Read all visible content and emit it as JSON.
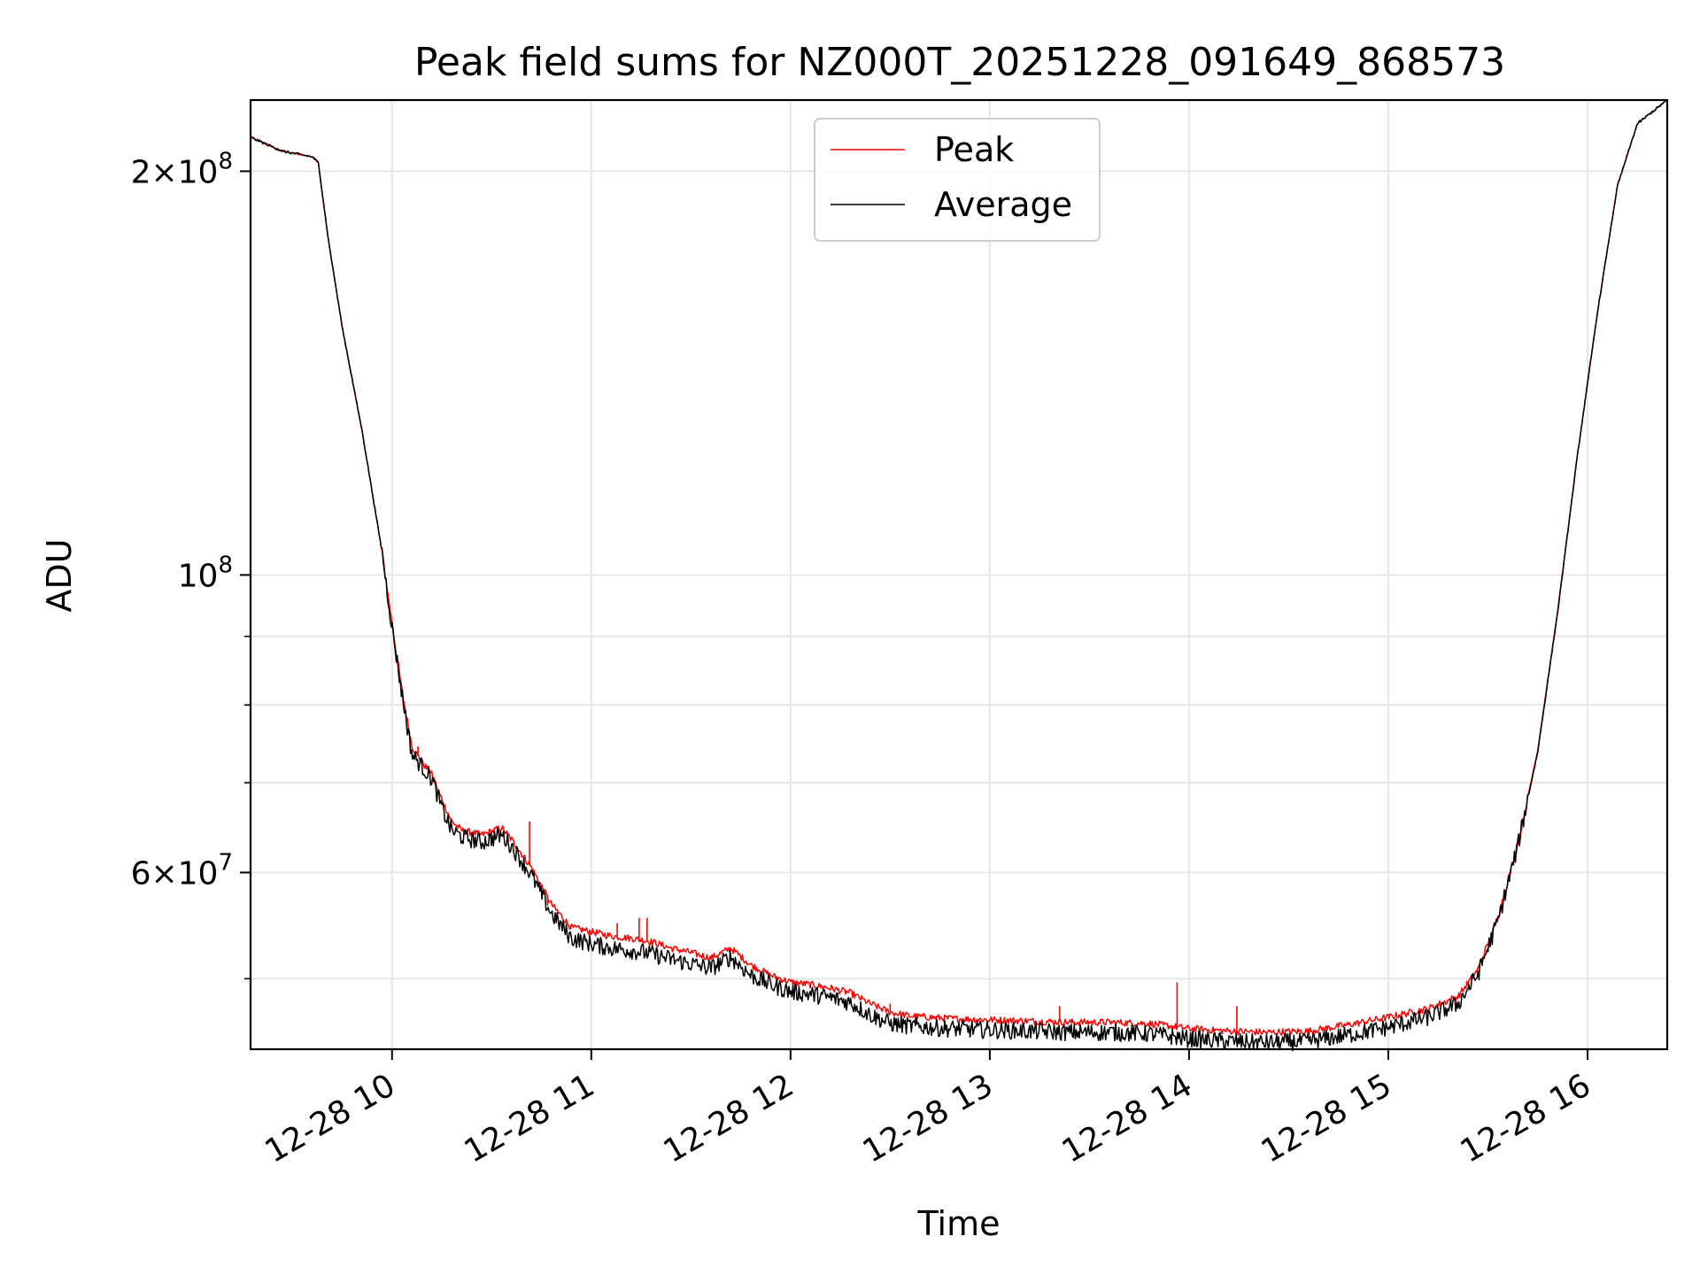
{
  "chart_data": {
    "type": "line",
    "title": "Peak field sums for NZ000T_20251228_091649_868573",
    "xlabel": "Time",
    "ylabel": "ADU",
    "y_scale": "log",
    "x_unit": "hours (clock time on 2025-12-28)",
    "xlim": [
      9.29,
      16.4
    ],
    "ylim": [
      44300000,
      226000000
    ],
    "grid": true,
    "legend_position": "top-center",
    "x_ticks": [
      {
        "value": 10,
        "label": "12-28 10"
      },
      {
        "value": 11,
        "label": "12-28 11"
      },
      {
        "value": 12,
        "label": "12-28 12"
      },
      {
        "value": 13,
        "label": "12-28 13"
      },
      {
        "value": 14,
        "label": "12-28 14"
      },
      {
        "value": 15,
        "label": "12-28 15"
      },
      {
        "value": 16,
        "label": "12-28 16"
      }
    ],
    "y_major_ticks": [
      {
        "value": 200000000,
        "base": "2",
        "exp": "8"
      },
      {
        "value": 100000000,
        "base": "",
        "exp": "8"
      },
      {
        "value": 60000000,
        "base": "6",
        "exp": "7"
      }
    ],
    "y_minor_ticks": [
      50000000,
      70000000,
      80000000,
      90000000
    ],
    "series": [
      {
        "name": "Peak",
        "color": "#ff0000",
        "x": [
          9.29,
          9.45,
          9.6,
          9.63,
          9.68,
          9.75,
          9.85,
          9.95,
          10.0,
          10.05,
          10.1,
          10.15,
          10.2,
          10.25,
          10.3,
          10.35,
          10.45,
          10.55,
          10.6,
          10.7,
          10.8,
          10.9,
          11.0,
          11.1,
          11.2,
          11.3,
          11.4,
          11.5,
          11.6,
          11.7,
          11.8,
          11.9,
          12.0,
          12.1,
          12.2,
          12.3,
          12.4,
          12.5,
          12.6,
          12.8,
          13.0,
          13.2,
          13.4,
          13.6,
          13.8,
          14.0,
          14.2,
          14.4,
          14.6,
          14.8,
          15.0,
          15.2,
          15.35,
          15.45,
          15.55,
          15.65,
          15.75,
          15.85,
          15.95,
          16.05,
          16.15,
          16.25,
          16.4
        ],
        "y": [
          212000000,
          207000000,
          205000000,
          203000000,
          178000000,
          153000000,
          128000000,
          104000000,
          92000000,
          82000000,
          74500000,
          72500000,
          71000000,
          68000000,
          65500000,
          64500000,
          64000000,
          64800000,
          63500000,
          60500000,
          56800000,
          54600000,
          54200000,
          53800000,
          53600000,
          53300000,
          52700000,
          52300000,
          51800000,
          52700000,
          51200000,
          50300000,
          49700000,
          49500000,
          49200000,
          48800000,
          47900000,
          47200000,
          46900000,
          46700000,
          46600000,
          46500000,
          46400000,
          46400000,
          46300000,
          45900000,
          45700000,
          45600000,
          45700000,
          46200000,
          46800000,
          47500000,
          48500000,
          50800000,
          55500000,
          63000000,
          74000000,
          94000000,
          123000000,
          157000000,
          195000000,
          217000000,
          226000000
        ],
        "spikes": [
          {
            "x": 10.13,
            "y": 74500000
          },
          {
            "x": 10.69,
            "y": 65500000
          },
          {
            "x": 10.78,
            "y": 56700000
          },
          {
            "x": 11.13,
            "y": 55000000
          },
          {
            "x": 11.24,
            "y": 55500000
          },
          {
            "x": 11.28,
            "y": 55500000
          },
          {
            "x": 11.63,
            "y": 51900000
          },
          {
            "x": 12.5,
            "y": 47900000
          },
          {
            "x": 13.35,
            "y": 47700000
          },
          {
            "x": 13.94,
            "y": 49700000
          },
          {
            "x": 14.24,
            "y": 47700000
          }
        ]
      },
      {
        "name": "Average",
        "color": "#000000",
        "x": [
          9.29,
          9.45,
          9.6,
          9.63,
          9.68,
          9.75,
          9.85,
          9.95,
          10.0,
          10.05,
          10.1,
          10.15,
          10.2,
          10.25,
          10.3,
          10.35,
          10.45,
          10.55,
          10.6,
          10.7,
          10.8,
          10.9,
          11.0,
          11.1,
          11.2,
          11.3,
          11.4,
          11.5,
          11.6,
          11.7,
          11.8,
          11.9,
          12.0,
          12.1,
          12.2,
          12.3,
          12.4,
          12.5,
          12.6,
          12.8,
          13.0,
          13.2,
          13.4,
          13.6,
          13.8,
          14.0,
          14.2,
          14.4,
          14.6,
          14.8,
          15.0,
          15.2,
          15.35,
          15.45,
          15.55,
          15.65,
          15.75,
          15.85,
          15.95,
          16.05,
          16.15,
          16.25,
          16.4
        ],
        "y": [
          212000000,
          207000000,
          205000000,
          203000000,
          178000000,
          153000000,
          128000000,
          104000000,
          91500000,
          81500000,
          73500000,
          72000000,
          70500000,
          67000000,
          64500000,
          63800000,
          63200000,
          64000000,
          62800000,
          59700000,
          55900000,
          53600000,
          53100000,
          52700000,
          52500000,
          52200000,
          51700000,
          51300000,
          50900000,
          51900000,
          50300000,
          49500000,
          48900000,
          48700000,
          48400000,
          48000000,
          47000000,
          46300000,
          46100000,
          45900000,
          45800000,
          45700000,
          45600000,
          45600000,
          45500000,
          45100000,
          44900000,
          44800000,
          44900000,
          45400000,
          46000000,
          46800000,
          47900000,
          50400000,
          55200000,
          62800000,
          73800000,
          93800000,
          123000000,
          157000000,
          195000000,
          217000000,
          226000000
        ]
      }
    ]
  }
}
